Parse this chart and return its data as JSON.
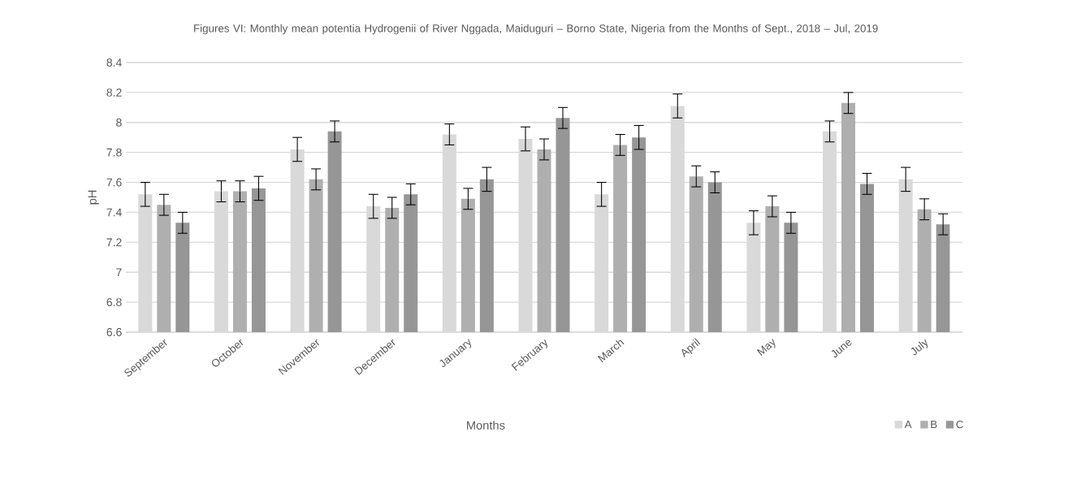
{
  "chart_data": {
    "type": "bar",
    "title": "Figures VI: Monthly mean potentia Hydrogenii of River Nggada, Maiduguri – Borno State, Nigeria from the Months of Sept., 2018 – Jul, 2019",
    "xlabel": "Months",
    "ylabel": "pH",
    "categories": [
      "September",
      "October",
      "November",
      "December",
      "January",
      "February",
      "March",
      "April",
      "May",
      "June",
      "July"
    ],
    "series": [
      {
        "name": "A",
        "color": "#d9d9d9",
        "values": [
          7.52,
          7.54,
          7.82,
          7.44,
          7.92,
          7.89,
          7.52,
          8.11,
          7.33,
          7.94,
          7.62
        ],
        "errors": [
          0.08,
          0.07,
          0.08,
          0.08,
          0.07,
          0.08,
          0.08,
          0.08,
          0.08,
          0.07,
          0.08
        ]
      },
      {
        "name": "B",
        "color": "#afafaf",
        "values": [
          7.45,
          7.54,
          7.62,
          7.43,
          7.49,
          7.82,
          7.85,
          7.64,
          7.44,
          8.13,
          7.42
        ],
        "errors": [
          0.07,
          0.07,
          0.07,
          0.07,
          0.07,
          0.07,
          0.07,
          0.07,
          0.07,
          0.07,
          0.07
        ]
      },
      {
        "name": "C",
        "color": "#969696",
        "values": [
          7.33,
          7.56,
          7.94,
          7.52,
          7.62,
          8.03,
          7.9,
          7.6,
          7.33,
          7.59,
          7.32
        ],
        "errors": [
          0.07,
          0.08,
          0.07,
          0.07,
          0.08,
          0.07,
          0.08,
          0.07,
          0.07,
          0.07,
          0.07
        ]
      }
    ],
    "ylim": [
      6.6,
      8.4
    ],
    "yticks": [
      6.6,
      6.8,
      7,
      7.2,
      7.4,
      7.6,
      7.8,
      8,
      8.2,
      8.4
    ],
    "grid": "y",
    "legend": "bottom right"
  }
}
